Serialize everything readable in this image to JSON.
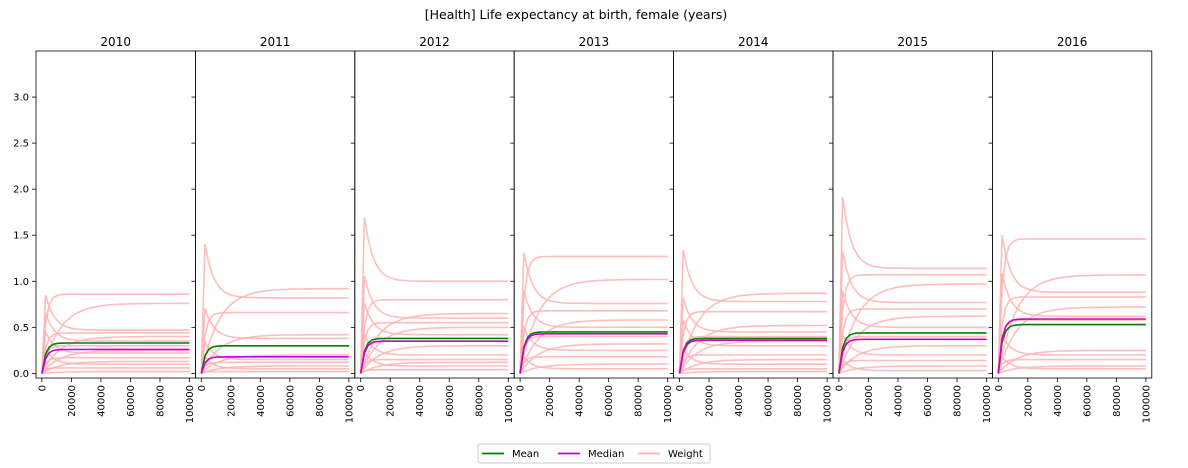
{
  "chart_data": {
    "type": "line",
    "title": "[Health] Life expectancy at birth, female (years)",
    "panels": [
      "2010",
      "2011",
      "2012",
      "2013",
      "2014",
      "2015",
      "2016"
    ],
    "x_ticks": [
      0,
      20000,
      40000,
      60000,
      80000,
      100000
    ],
    "x_tick_labels": [
      "0",
      "20000",
      "40000",
      "60000",
      "80000",
      "100000"
    ],
    "xlim": [
      -4000,
      104000
    ],
    "ylim": [
      -0.05,
      3.5
    ],
    "y_ticks": [
      0.0,
      0.5,
      1.0,
      1.5,
      2.0,
      2.5,
      3.0
    ],
    "y_tick_labels": [
      "0.0",
      "0.5",
      "1.0",
      "1.5",
      "2.0",
      "2.5",
      "3.0"
    ],
    "grid": false,
    "legend_position": "bottom-center",
    "legend": [
      {
        "label": "Mean",
        "color": "#008000"
      },
      {
        "label": "Median",
        "color": "#cc00cc"
      },
      {
        "label": "Weight",
        "color": "#ffb3b3"
      }
    ],
    "series_by_panel": [
      {
        "mean": 0.33,
        "median": 0.26,
        "weights": [
          0.86,
          0.76,
          0.47,
          0.44,
          0.4,
          0.35,
          0.3,
          0.25,
          0.22,
          0.17,
          0.13,
          0.1,
          0.06,
          0.02
        ]
      },
      {
        "mean": 0.3,
        "median": 0.18,
        "weights": [
          0.92,
          0.82,
          0.66,
          0.42,
          0.38,
          0.3,
          0.2,
          0.15,
          0.12,
          0.08,
          0.05,
          0.02
        ]
      },
      {
        "mean": 0.38,
        "median": 0.35,
        "weights": [
          1.0,
          0.8,
          0.65,
          0.6,
          0.55,
          0.5,
          0.42,
          0.35,
          0.3,
          0.2,
          0.15,
          0.12,
          0.08,
          0.04
        ]
      },
      {
        "mean": 0.45,
        "median": 0.43,
        "weights": [
          1.27,
          1.02,
          0.76,
          0.68,
          0.58,
          0.5,
          0.4,
          0.32,
          0.25,
          0.18,
          0.1,
          0.05
        ]
      },
      {
        "mean": 0.38,
        "median": 0.36,
        "weights": [
          0.87,
          0.78,
          0.67,
          0.52,
          0.45,
          0.4,
          0.35,
          0.3,
          0.2,
          0.15,
          0.1,
          0.05,
          0.02
        ]
      },
      {
        "mean": 0.44,
        "median": 0.37,
        "weights": [
          1.14,
          1.07,
          0.97,
          0.77,
          0.7,
          0.62,
          0.5,
          0.4,
          0.3,
          0.2,
          0.14,
          0.08,
          0.03
        ]
      },
      {
        "mean": 0.53,
        "median": 0.59,
        "weights": [
          1.46,
          1.07,
          0.88,
          0.83,
          0.72,
          0.62,
          0.58,
          0.25,
          0.2,
          0.15,
          0.08,
          0.05
        ]
      }
    ]
  }
}
